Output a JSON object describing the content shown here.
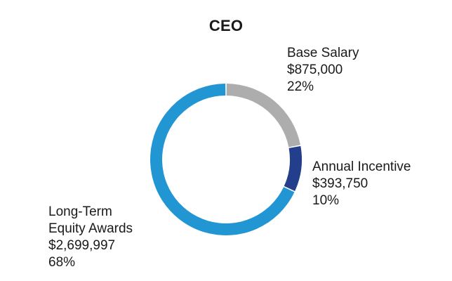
{
  "chart_data": {
    "type": "pie",
    "donut": true,
    "title": "CEO",
    "slices": [
      {
        "label": "Base Salary",
        "amount": "$875,000",
        "percent_label": "22%",
        "value": 875000,
        "color": "#adadad"
      },
      {
        "label": "Annual Incentive",
        "amount": "$393,750",
        "percent_label": "10%",
        "value": 393750,
        "color": "#233e8b"
      },
      {
        "label_lines": [
          "Long-Term",
          "Equity Awards"
        ],
        "amount": "$2,699,997",
        "percent_label": "68%",
        "value": 2699997,
        "color": "#2196d3"
      }
    ],
    "legend": "none"
  }
}
